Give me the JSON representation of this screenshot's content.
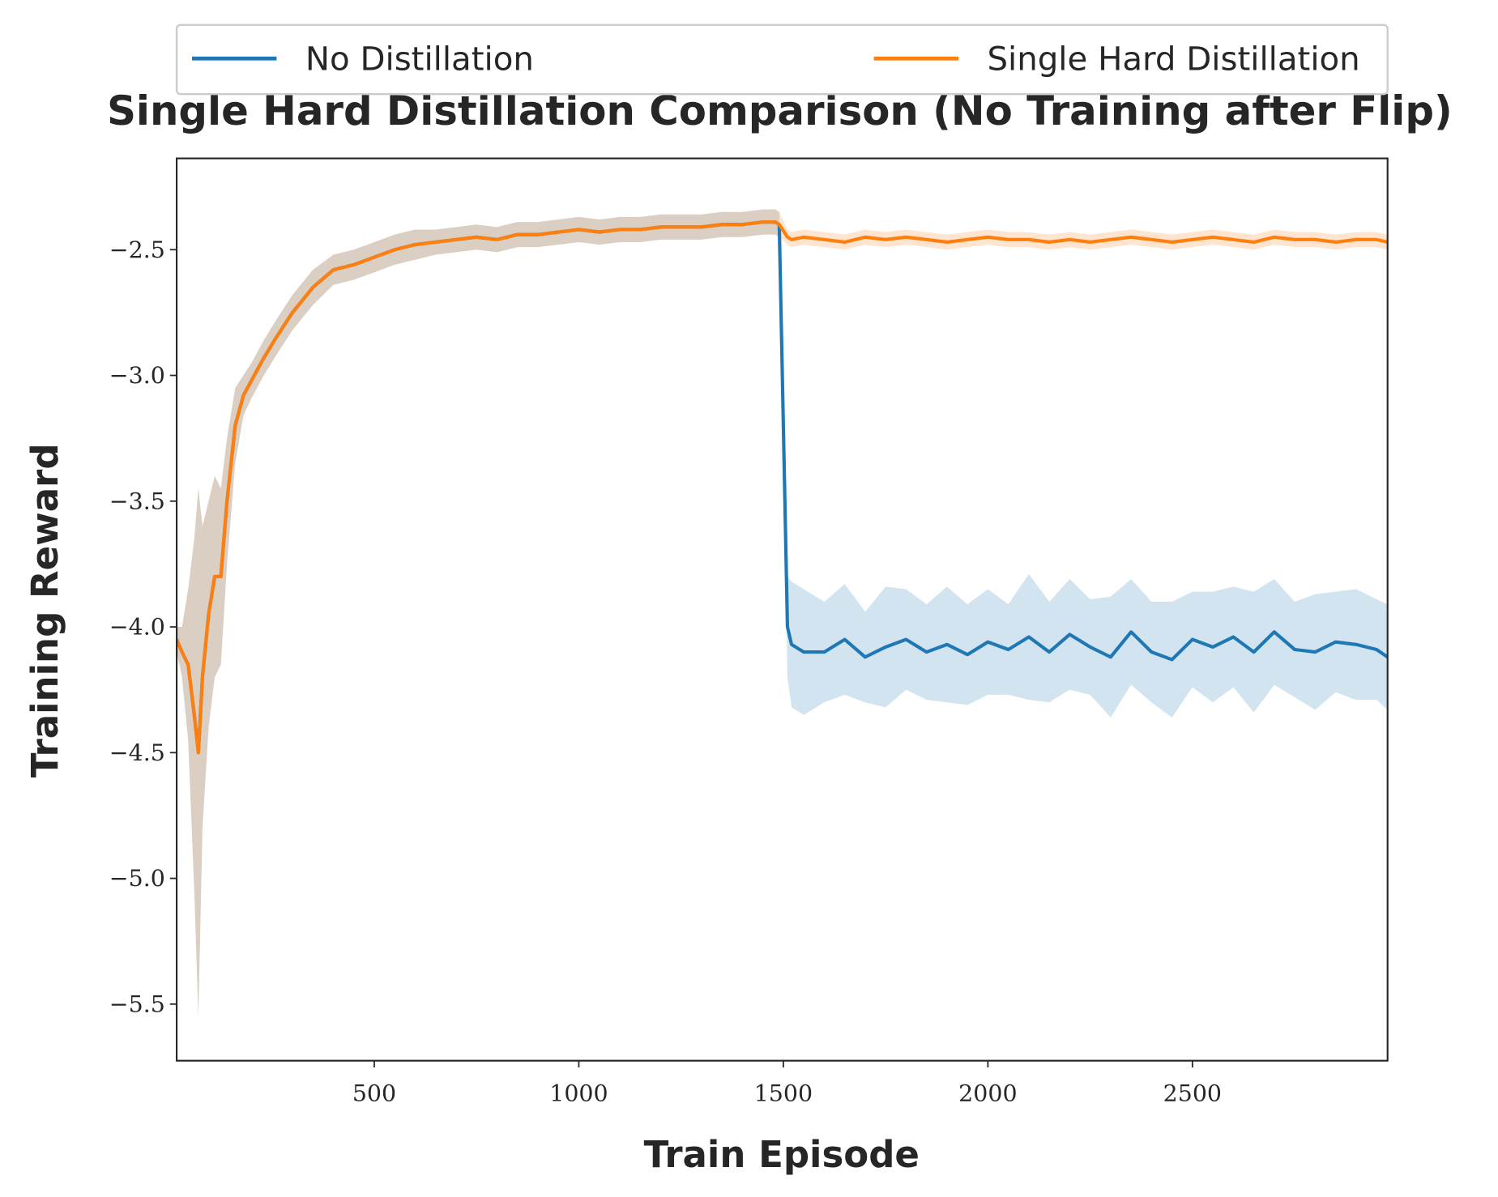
{
  "chart_data": {
    "type": "line",
    "title": "Single Hard Distillation Comparison (No Training after Flip)",
    "xlabel": "Train Episode",
    "ylabel": "Training Reward",
    "x": [
      17,
      30,
      45,
      60,
      70,
      80,
      95,
      110,
      125,
      140,
      160,
      180,
      200,
      230,
      260,
      300,
      350,
      400,
      450,
      500,
      550,
      600,
      650,
      700,
      750,
      800,
      850,
      900,
      950,
      1000,
      1050,
      1100,
      1150,
      1200,
      1250,
      1300,
      1350,
      1400,
      1450,
      1480,
      1490,
      1510,
      1520,
      1550,
      1600,
      1650,
      1700,
      1750,
      1800,
      1850,
      1900,
      1950,
      2000,
      2050,
      2100,
      2150,
      2200,
      2250,
      2300,
      2350,
      2400,
      2450,
      2500,
      2550,
      2600,
      2650,
      2700,
      2750,
      2800,
      2850,
      2900,
      2950,
      2977
    ],
    "series": [
      {
        "name": "No Distillation",
        "color": "#1f77b4",
        "values": [
          -4.05,
          -4.1,
          -4.15,
          -4.35,
          -4.5,
          -4.2,
          -3.95,
          -3.8,
          -3.8,
          -3.5,
          -3.2,
          -3.08,
          -3.02,
          -2.93,
          -2.85,
          -2.75,
          -2.65,
          -2.58,
          -2.56,
          -2.53,
          -2.5,
          -2.48,
          -2.47,
          -2.46,
          -2.45,
          -2.46,
          -2.44,
          -2.44,
          -2.43,
          -2.42,
          -2.43,
          -2.42,
          -2.42,
          -2.41,
          -2.41,
          -2.41,
          -2.4,
          -2.4,
          -2.39,
          -2.39,
          -2.4,
          -4.0,
          -4.07,
          -4.1,
          -4.1,
          -4.05,
          -4.12,
          -4.08,
          -4.05,
          -4.1,
          -4.07,
          -4.11,
          -4.06,
          -4.09,
          -4.04,
          -4.1,
          -4.03,
          -4.08,
          -4.12,
          -4.02,
          -4.1,
          -4.13,
          -4.05,
          -4.08,
          -4.04,
          -4.1,
          -4.02,
          -4.09,
          -4.1,
          -4.06,
          -4.07,
          -4.09,
          -4.12
        ],
        "errors": [
          0.05,
          0.1,
          0.3,
          0.7,
          1.05,
          0.6,
          0.45,
          0.4,
          0.35,
          0.25,
          0.15,
          0.08,
          0.07,
          0.07,
          0.07,
          0.07,
          0.07,
          0.06,
          0.06,
          0.06,
          0.06,
          0.06,
          0.05,
          0.05,
          0.05,
          0.05,
          0.05,
          0.05,
          0.05,
          0.05,
          0.05,
          0.05,
          0.05,
          0.05,
          0.05,
          0.05,
          0.05,
          0.05,
          0.05,
          0.05,
          0.05,
          0.2,
          0.25,
          0.25,
          0.2,
          0.22,
          0.18,
          0.24,
          0.2,
          0.19,
          0.23,
          0.2,
          0.21,
          0.18,
          0.25,
          0.2,
          0.22,
          0.19,
          0.24,
          0.21,
          0.2,
          0.23,
          0.19,
          0.22,
          0.2,
          0.24,
          0.21,
          0.19,
          0.23,
          0.2,
          0.22,
          0.2,
          0.21
        ]
      },
      {
        "name": "Single Hard Distillation",
        "color": "#ff7f0e",
        "values": [
          -4.05,
          -4.1,
          -4.15,
          -4.35,
          -4.5,
          -4.2,
          -3.95,
          -3.8,
          -3.8,
          -3.5,
          -3.2,
          -3.08,
          -3.02,
          -2.93,
          -2.85,
          -2.75,
          -2.65,
          -2.58,
          -2.56,
          -2.53,
          -2.5,
          -2.48,
          -2.47,
          -2.46,
          -2.45,
          -2.46,
          -2.44,
          -2.44,
          -2.43,
          -2.42,
          -2.43,
          -2.42,
          -2.42,
          -2.41,
          -2.41,
          -2.41,
          -2.4,
          -2.4,
          -2.39,
          -2.39,
          -2.4,
          -2.45,
          -2.46,
          -2.45,
          -2.46,
          -2.47,
          -2.45,
          -2.46,
          -2.45,
          -2.46,
          -2.47,
          -2.46,
          -2.45,
          -2.46,
          -2.46,
          -2.47,
          -2.46,
          -2.47,
          -2.46,
          -2.45,
          -2.46,
          -2.47,
          -2.46,
          -2.45,
          -2.46,
          -2.47,
          -2.45,
          -2.46,
          -2.46,
          -2.47,
          -2.46,
          -2.46,
          -2.47
        ],
        "errors": [
          0.05,
          0.1,
          0.3,
          0.7,
          1.05,
          0.6,
          0.45,
          0.4,
          0.35,
          0.25,
          0.15,
          0.08,
          0.07,
          0.07,
          0.07,
          0.07,
          0.07,
          0.06,
          0.06,
          0.06,
          0.06,
          0.06,
          0.05,
          0.05,
          0.05,
          0.05,
          0.05,
          0.05,
          0.05,
          0.05,
          0.05,
          0.05,
          0.05,
          0.05,
          0.05,
          0.05,
          0.05,
          0.05,
          0.05,
          0.05,
          0.05,
          0.03,
          0.03,
          0.03,
          0.03,
          0.03,
          0.03,
          0.03,
          0.03,
          0.03,
          0.03,
          0.03,
          0.03,
          0.03,
          0.03,
          0.03,
          0.03,
          0.03,
          0.03,
          0.03,
          0.03,
          0.03,
          0.03,
          0.03,
          0.03,
          0.03,
          0.03,
          0.03,
          0.03,
          0.03,
          0.03,
          0.03,
          0.03
        ]
      }
    ],
    "xlim": [
      17,
      2977
    ],
    "ylim": [
      -5.725,
      -2.137
    ],
    "xticks": [
      500,
      1000,
      1500,
      2000,
      2500
    ],
    "yticks": [
      {
        "value": -2.5,
        "label": "−2.5"
      },
      {
        "value": -3.0,
        "label": "−3.0"
      },
      {
        "value": -3.5,
        "label": "−3.5"
      },
      {
        "value": -4.0,
        "label": "−4.0"
      },
      {
        "value": -4.5,
        "label": "−4.5"
      },
      {
        "value": -5.0,
        "label": "−5.0"
      },
      {
        "value": -5.5,
        "label": "−5.5"
      }
    ],
    "grid": false,
    "legend": "top"
  }
}
